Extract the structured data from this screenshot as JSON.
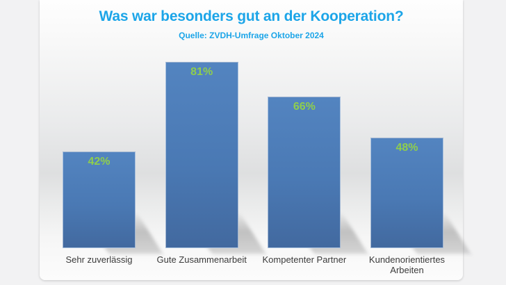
{
  "header": {
    "title": "Was war besonders gut an der Kooperation?",
    "subtitle": "Quelle: ZVDH-Umfrage Oktober 2024"
  },
  "chart_data": {
    "type": "bar",
    "title": "Was war besonders gut an der Kooperation?",
    "subtitle": "Quelle: ZVDH-Umfrage Oktober 2024",
    "categories": [
      "Sehr zuverlässig",
      "Gute Zusammenarbeit",
      "Kompetenter Partner",
      "Kundenorientiertes Arbeiten"
    ],
    "values": [
      42,
      81,
      66,
      48
    ],
    "value_labels": [
      "42%",
      "81%",
      "66%",
      "48%"
    ],
    "xlabel": "",
    "ylabel": "",
    "ylim": [
      0,
      100
    ],
    "grid": false,
    "legend": "none",
    "orientation": "vertical"
  },
  "colors": {
    "title_text": "#1CA5E8",
    "subtitle_text": "#1CA5E8",
    "bar_fill": "#4A79B4",
    "value_label_text": "#8FCE4D",
    "category_label_text": "#3B3B3B",
    "slide_background": "#E9EAEB",
    "outer_background": "#F2F2F3"
  }
}
